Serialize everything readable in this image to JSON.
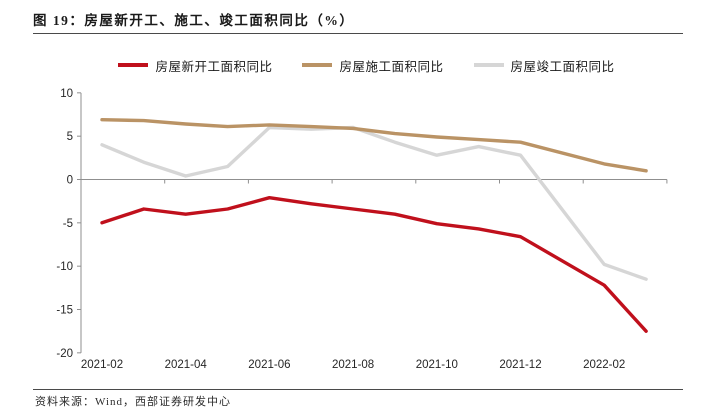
{
  "figure": {
    "title": "图 19：房屋新开工、施工、竣工面积同比（%）",
    "source": "资料来源：Wind，西部证券研发中心"
  },
  "chart_data": {
    "type": "line",
    "title": "房屋新开工、施工、竣工面积同比（%）",
    "x": [
      "2021-02",
      "2021-03",
      "2021-04",
      "2021-05",
      "2021-06",
      "2021-07",
      "2021-08",
      "2021-09",
      "2021-10",
      "2021-11",
      "2021-12",
      "2022-02",
      "2022-03"
    ],
    "x_month_offsets": [
      0,
      1,
      2,
      3,
      4,
      5,
      6,
      7,
      8,
      9,
      10,
      12,
      13
    ],
    "series": [
      {
        "name": "房屋新开工面积同比",
        "color": "#C0101C",
        "values": [
          -5.0,
          -3.4,
          -4.0,
          -3.4,
          -2.1,
          -2.8,
          -3.4,
          -4.0,
          -5.1,
          -5.7,
          -6.6,
          -12.2,
          -17.5
        ]
      },
      {
        "name": "房屋施工面积同比",
        "color": "#BA9365",
        "values": [
          6.9,
          6.8,
          6.4,
          6.1,
          6.3,
          6.1,
          5.9,
          5.3,
          4.9,
          4.6,
          4.3,
          1.8,
          1.0
        ]
      },
      {
        "name": "房屋竣工面积同比",
        "color": "#D6D6D6",
        "values": [
          4.0,
          2.0,
          0.4,
          1.5,
          6.0,
          5.8,
          6.0,
          4.3,
          2.8,
          3.8,
          2.8,
          -9.8,
          -11.5
        ]
      }
    ],
    "xticklabels": [
      "2021-02",
      "2021-04",
      "2021-06",
      "2021-08",
      "2021-10",
      "2021-12",
      "2022-02"
    ],
    "yticks": [
      10,
      5,
      0,
      -5,
      -10,
      -15,
      -20
    ],
    "ylim": [
      -20,
      10
    ],
    "legend_position": "top",
    "grid": "off",
    "axis_color": "#8f8f8f",
    "tick_label_color": "#262626"
  }
}
